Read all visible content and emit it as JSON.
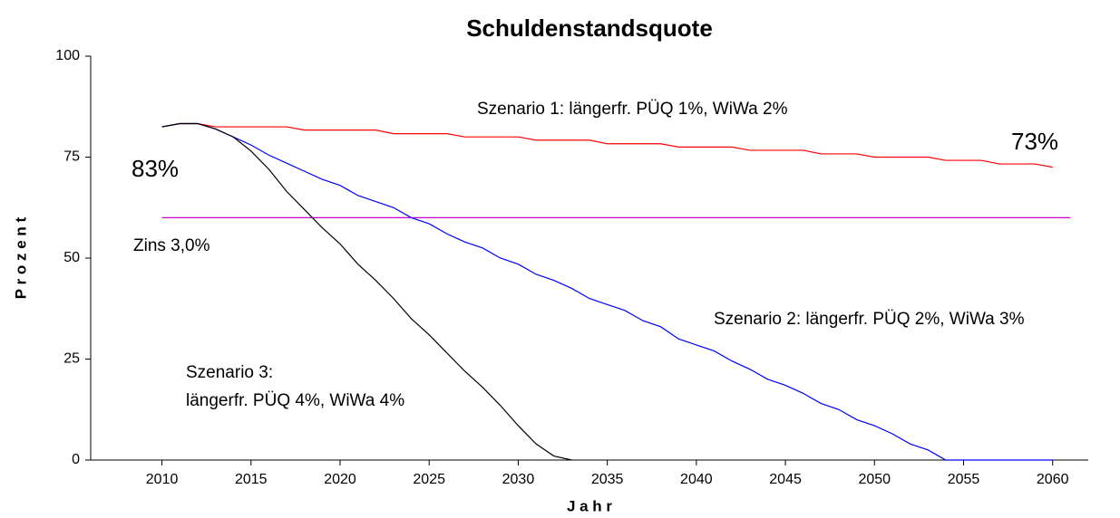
{
  "chart_data": {
    "type": "line",
    "title": "Schuldenstandsquote",
    "x_label": "J a h r",
    "y_label": "P r o z e n t",
    "x": [
      2010,
      2011,
      2012,
      2013,
      2014,
      2015,
      2016,
      2017,
      2018,
      2019,
      2020,
      2021,
      2022,
      2023,
      2024,
      2025,
      2026,
      2027,
      2028,
      2029,
      2030,
      2031,
      2032,
      2033,
      2034,
      2035,
      2036,
      2037,
      2038,
      2039,
      2040,
      2041,
      2042,
      2043,
      2044,
      2045,
      2046,
      2047,
      2048,
      2049,
      2050,
      2051,
      2052,
      2053,
      2054,
      2055,
      2056,
      2057,
      2058,
      2059,
      2060
    ],
    "series": [
      {
        "color": "#ff0000",
        "values": [
          82.5,
          83.3,
          83.3,
          82.5,
          82.5,
          82.5,
          82.5,
          82.5,
          81.7,
          81.7,
          81.7,
          81.7,
          81.7,
          80.8,
          80.8,
          80.8,
          80.8,
          80,
          80,
          80,
          80,
          79.2,
          79.2,
          79.2,
          79.2,
          78.3,
          78.3,
          78.3,
          78.3,
          77.5,
          77.5,
          77.5,
          77.5,
          76.7,
          76.7,
          76.7,
          76.7,
          75.8,
          75.8,
          75.8,
          75,
          75,
          75,
          75,
          74.2,
          74.2,
          74.2,
          73.3,
          73.3,
          73.3,
          72.5
        ]
      },
      {
        "color": "#0000ff",
        "values": [
          82.5,
          83.3,
          83.3,
          82,
          80,
          78,
          75.5,
          73.5,
          71.5,
          69.5,
          68,
          65.5,
          64,
          62.5,
          60,
          58.5,
          56,
          54,
          52.5,
          50,
          48.5,
          46,
          44.5,
          42.5,
          40,
          38.5,
          37,
          34.5,
          33,
          30,
          28.5,
          27,
          24.5,
          22.5,
          20,
          18.5,
          16.5,
          14,
          12.5,
          10,
          8.5,
          6.5,
          4,
          2.5,
          0,
          0,
          0,
          0,
          0,
          0,
          0
        ]
      },
      {
        "color": "#000000",
        "values": [
          82.5,
          83.3,
          83.3,
          82,
          80,
          76.5,
          72,
          66.5,
          62,
          57.5,
          53.5,
          48.5,
          44.5,
          40,
          35,
          31,
          26.5,
          22,
          18,
          13.5,
          8.5,
          4,
          1,
          0,
          null,
          null,
          null,
          null,
          null,
          null,
          null,
          null,
          null,
          null,
          null,
          null,
          null,
          null,
          null,
          null,
          null,
          null,
          null,
          null,
          null,
          null,
          null,
          null,
          null,
          null,
          null
        ]
      }
    ],
    "reference_line": {
      "value": 60,
      "from": 2010,
      "to": 2061,
      "color": "#cc00cc"
    },
    "annotations": [
      "Szenario 1: längerfr. PÜQ 1%, WiWa 2%",
      "73%",
      "83%",
      "Zins 3,0%",
      "Szenario 2: längerfr. PÜQ 2%, WiWa 3%",
      "Szenario 3:",
      "längerfr. PÜQ 4%, WiWa 4%"
    ],
    "xlim": [
      2006,
      2062
    ],
    "xticks": [
      2010,
      2015,
      2020,
      2025,
      2030,
      2035,
      2040,
      2045,
      2050,
      2055,
      2060
    ],
    "ylim": [
      0,
      100
    ],
    "yticks": [
      0,
      25,
      50,
      75,
      100
    ],
    "grid": false
  }
}
